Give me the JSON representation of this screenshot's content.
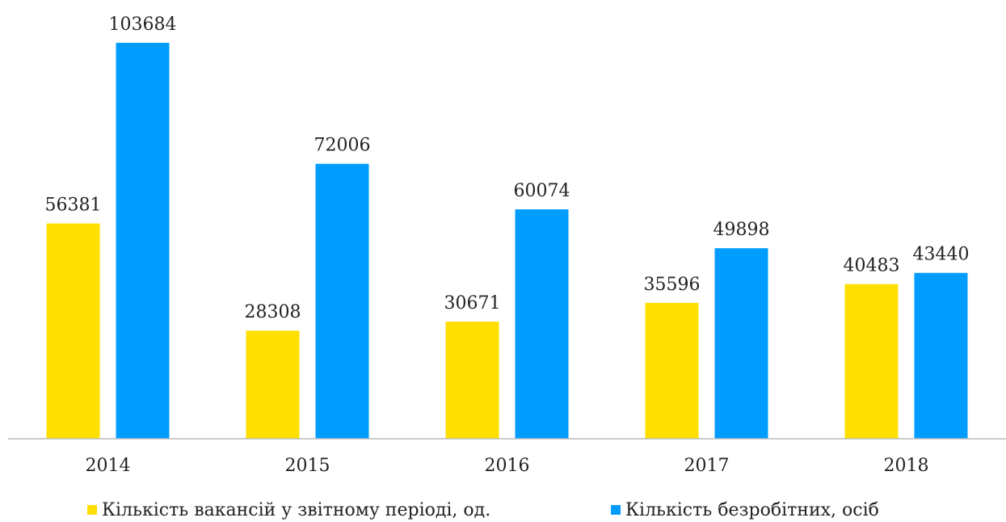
{
  "chart_data": {
    "type": "bar",
    "categories": [
      "2014",
      "2015",
      "2016",
      "2017",
      "2018"
    ],
    "series": [
      {
        "name": "Кількість вакансій у звітному періоді, од.",
        "color": "#FFDF00",
        "values": [
          56381,
          28308,
          30671,
          35596,
          40483
        ]
      },
      {
        "name": "Кількість безробітних, осіб",
        "color": "#009DFF",
        "values": [
          103684,
          72006,
          60074,
          49898,
          43440
        ]
      }
    ],
    "legend": "bottom"
  }
}
